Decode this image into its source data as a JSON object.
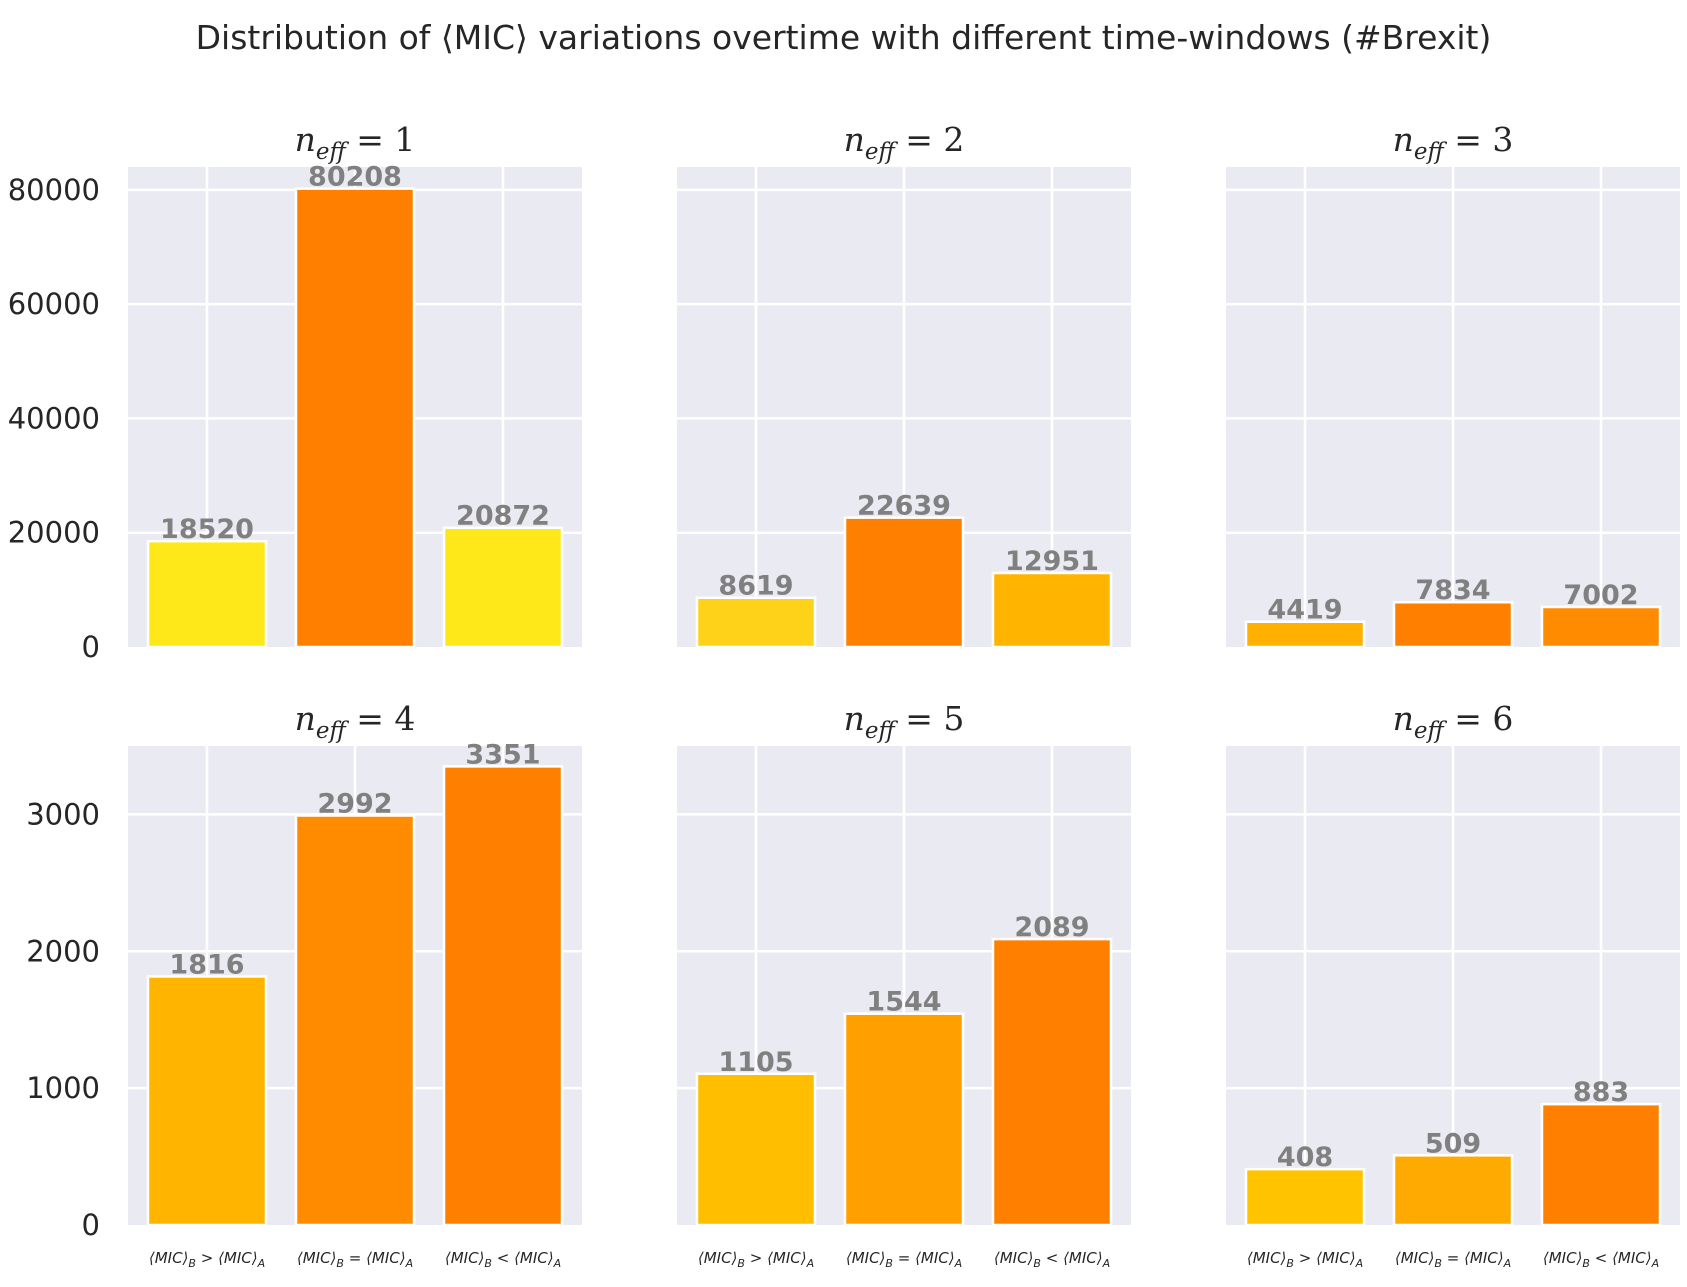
{
  "chart_data": {
    "type": "bar",
    "title": "Distribution of ⟨MIC⟩ variations overtime with different time-windows (#Brexit)",
    "categories": [
      "⟨MIC⟩B > ⟨MIC⟩A",
      "⟨MIC⟩B = ⟨MIC⟩A",
      "⟨MIC⟩B < ⟨MIC⟩A"
    ],
    "category_parts": [
      {
        "left": "⟨MIC⟩",
        "sub1": "B",
        "op": " > ",
        "right": "⟨MIC⟩",
        "sub2": "A"
      },
      {
        "left": "⟨MIC⟩",
        "sub1": "B",
        "op": " = ",
        "right": "⟨MIC⟩",
        "sub2": "A"
      },
      {
        "left": "⟨MIC⟩",
        "sub1": "B",
        "op": " < ",
        "right": "⟨MIC⟩",
        "sub2": "A"
      }
    ],
    "grid": true,
    "panels": [
      {
        "title_var": "n",
        "title_sub": "eff",
        "title_eq": " = 1",
        "values": [
          18520,
          80208,
          20872
        ],
        "colors": [
          "#ffe81a",
          "#ff8000",
          "#ffe81a"
        ],
        "row": 0,
        "ylim": [
          0,
          84000
        ],
        "yticks": [
          0,
          20000,
          40000,
          60000,
          80000
        ]
      },
      {
        "title_var": "n",
        "title_sub": "eff",
        "title_eq": " = 2",
        "values": [
          8619,
          22639,
          12951
        ],
        "colors": [
          "#ffd21a",
          "#ff8000",
          "#ffb400"
        ],
        "row": 0,
        "ylim": [
          0,
          84000
        ],
        "yticks": [
          0,
          20000,
          40000,
          60000,
          80000
        ]
      },
      {
        "title_var": "n",
        "title_sub": "eff",
        "title_eq": " = 3",
        "values": [
          4419,
          7834,
          7002
        ],
        "colors": [
          "#ffb000",
          "#ff8000",
          "#ff8c00"
        ],
        "row": 0,
        "ylim": [
          0,
          84000
        ],
        "yticks": [
          0,
          20000,
          40000,
          60000,
          80000
        ]
      },
      {
        "title_var": "n",
        "title_sub": "eff",
        "title_eq": " = 4",
        "values": [
          1816,
          2992,
          3351
        ],
        "colors": [
          "#ffb400",
          "#ff8c00",
          "#ff8000"
        ],
        "row": 1,
        "ylim": [
          0,
          3500
        ],
        "yticks": [
          0,
          1000,
          2000,
          3000
        ]
      },
      {
        "title_var": "n",
        "title_sub": "eff",
        "title_eq": " = 5",
        "values": [
          1105,
          1544,
          2089
        ],
        "colors": [
          "#ffbe00",
          "#ffa000",
          "#ff8000"
        ],
        "row": 1,
        "ylim": [
          0,
          3500
        ],
        "yticks": [
          0,
          1000,
          2000,
          3000
        ]
      },
      {
        "title_var": "n",
        "title_sub": "eff",
        "title_eq": " = 6",
        "values": [
          408,
          509,
          883
        ],
        "colors": [
          "#ffc300",
          "#ffaa00",
          "#ff8000"
        ],
        "row": 1,
        "ylim": [
          0,
          3500
        ],
        "yticks": [
          0,
          1000,
          2000,
          3000
        ]
      }
    ]
  }
}
